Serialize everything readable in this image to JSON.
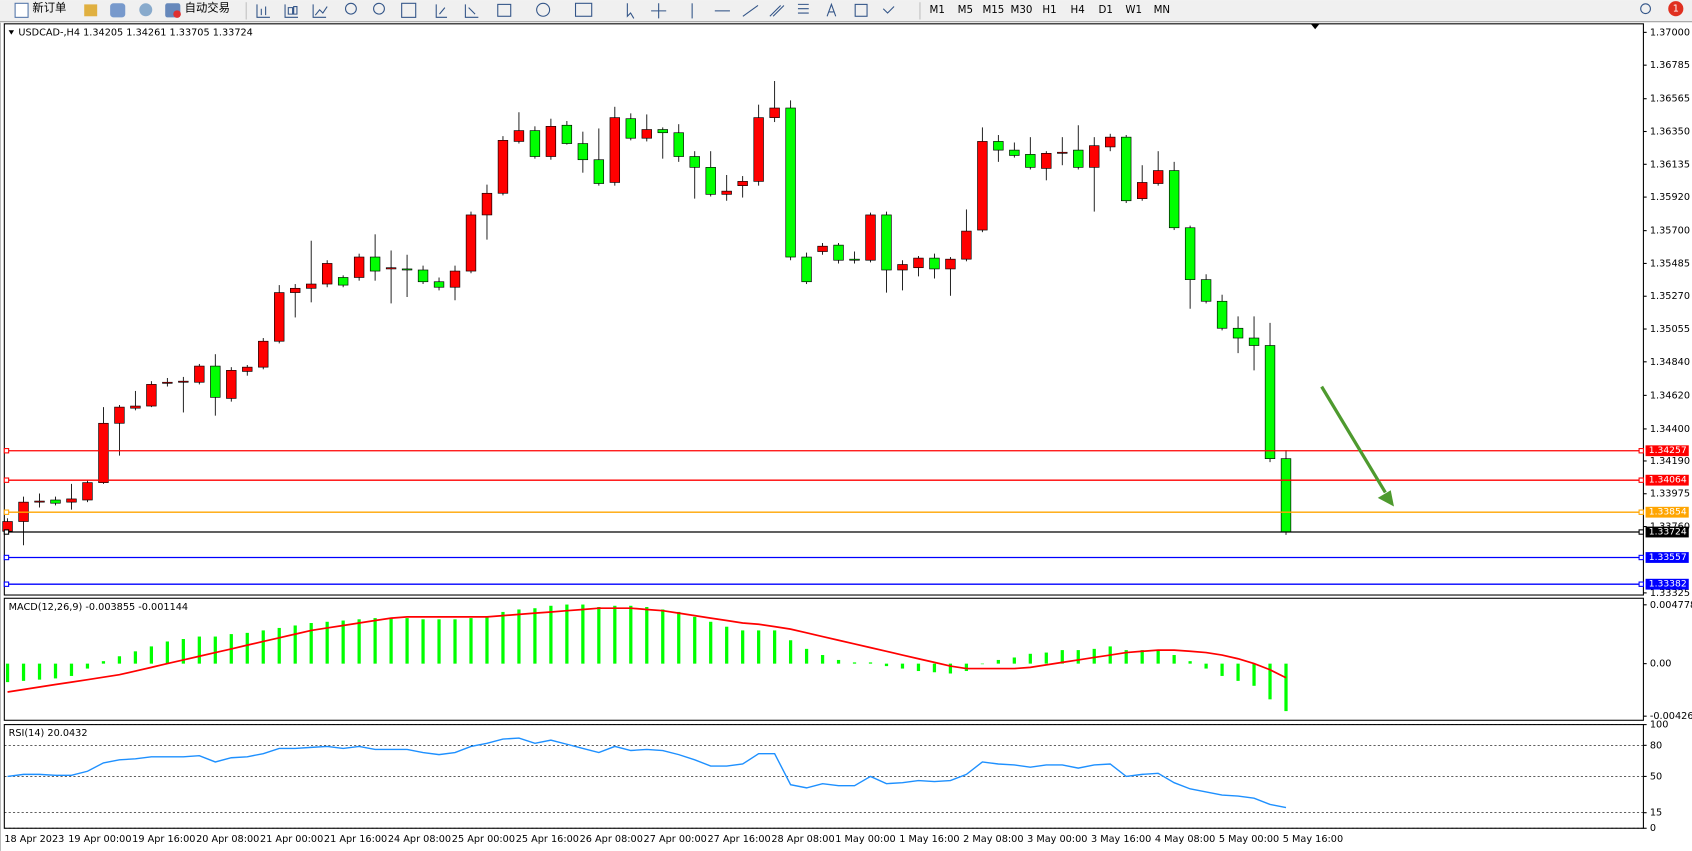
{
  "toolbar": {
    "new_order": "新订单",
    "auto_trading": "自动交易",
    "timeframes": [
      "M1",
      "M5",
      "M15",
      "M30",
      "H1",
      "H4",
      "D1",
      "W1",
      "MN"
    ],
    "alert_badge": "1"
  },
  "chart_data": [
    {
      "type": "candlestick",
      "title": "USDCAD-,H4  1.34205 1.34261 1.33705 1.33724",
      "categories": [
        "18 Apr 2023",
        null,
        null,
        null,
        "19 Apr 00:00",
        null,
        null,
        null,
        "19 Apr 16:00",
        null,
        null,
        null,
        "20 Apr 08:00",
        null,
        null,
        null,
        "21 Apr 00:00",
        null,
        null,
        null,
        "21 Apr 16:00",
        null,
        null,
        null,
        "24 Apr 08:00",
        null,
        null,
        null,
        "25 Apr 00:00",
        null,
        null,
        null,
        "25 Apr 16:00",
        null,
        null,
        null,
        "26 Apr 08:00",
        null,
        null,
        null,
        "27 Apr 00:00",
        null,
        null,
        null,
        "27 Apr 16:00",
        null,
        null,
        null,
        "28 Apr 08:00",
        null,
        null,
        null,
        "1 May 00:00",
        null,
        null,
        null,
        "1 May 16:00",
        null,
        null,
        null,
        "2 May 08:00",
        null,
        null,
        null,
        "3 May 00:00",
        null,
        null,
        null,
        "3 May 16:00",
        null,
        null,
        null,
        "4 May 08:00",
        null,
        null,
        null,
        "5 May 00:00",
        null,
        null,
        null,
        "5 May 16:00"
      ],
      "open": [
        1.33729,
        1.33793,
        1.3392,
        1.33934,
        1.3392,
        1.33934,
        1.34048,
        1.34437,
        1.34536,
        1.3455,
        1.34699,
        1.34706,
        1.34706,
        1.34812,
        1.346,
        1.34777,
        1.34805,
        1.34975,
        1.35294,
        1.35322,
        1.3535,
        1.35393,
        1.35393,
        1.35527,
        1.35449,
        1.35449,
        1.35442,
        1.35365,
        1.35329,
        1.35435,
        1.35803,
        1.35945,
        1.36285,
        1.36356,
        1.36186,
        1.36391,
        1.36271,
        1.36165,
        1.36016,
        1.36434,
        1.36306,
        1.36363,
        1.36342,
        1.36186,
        1.36115,
        1.35938,
        1.35995,
        1.36023,
        1.36441,
        1.36504,
        1.35527,
        1.35563,
        1.35605,
        1.35513,
        1.35506,
        1.35803,
        1.35442,
        1.35457,
        1.3552,
        1.35449,
        1.35513,
        1.35704,
        1.36285,
        1.36228,
        1.362,
        1.36108,
        1.36207,
        1.36228,
        1.36115,
        1.36249,
        1.36313,
        1.3591,
        1.36009,
        1.36094,
        1.35719,
        1.35379,
        1.35237,
        1.3506,
        1.34996,
        1.34947,
        1.34205
      ],
      "high": [
        1.33814,
        1.33956,
        1.33977,
        1.33956,
        1.3404,
        1.34062,
        1.34543,
        1.34557,
        1.34649,
        1.34713,
        1.34734,
        1.34741,
        1.34826,
        1.3489,
        1.34805,
        1.34819,
        1.34996,
        1.35343,
        1.3535,
        1.35634,
        1.35506,
        1.35407,
        1.35549,
        1.35676,
        1.3557,
        1.35542,
        1.35471,
        1.35393,
        1.35471,
        1.35825,
        1.36002,
        1.3632,
        1.36476,
        1.36384,
        1.36434,
        1.36419,
        1.36349,
        1.3637,
        1.36512,
        1.36469,
        1.36462,
        1.36377,
        1.36398,
        1.36221,
        1.36221,
        1.36065,
        1.36058,
        1.36526,
        1.36681,
        1.36554,
        1.35556,
        1.35619,
        1.35619,
        1.35563,
        1.35818,
        1.35825,
        1.35506,
        1.35534,
        1.35549,
        1.35527,
        1.35839,
        1.36377,
        1.36327,
        1.36278,
        1.36313,
        1.36221,
        1.36313,
        1.36391,
        1.36313,
        1.36335,
        1.36327,
        1.36129,
        1.36221,
        1.36151,
        1.35733,
        1.35414,
        1.3528,
        1.35138,
        1.35138,
        1.35095,
        1.34261
      ],
      "low": [
        1.33708,
        1.33637,
        1.33885,
        1.33899,
        1.33871,
        1.3392,
        1.3404,
        1.34225,
        1.34522,
        1.34543,
        1.34678,
        1.34508,
        1.34692,
        1.34487,
        1.34579,
        1.34749,
        1.34791,
        1.34961,
        1.35131,
        1.3523,
        1.35329,
        1.35329,
        1.35372,
        1.35372,
        1.35223,
        1.35265,
        1.3535,
        1.35308,
        1.35244,
        1.35421,
        1.35641,
        1.35931,
        1.36271,
        1.36172,
        1.36165,
        1.36264,
        1.3608,
        1.35995,
        1.35995,
        1.36292,
        1.36285,
        1.36172,
        1.36151,
        1.3591,
        1.35924,
        1.35896,
        1.35917,
        1.35995,
        1.36412,
        1.35506,
        1.3535,
        1.35542,
        1.35485,
        1.35485,
        1.35492,
        1.35294,
        1.35308,
        1.354,
        1.35386,
        1.35273,
        1.35499,
        1.3569,
        1.36151,
        1.36179,
        1.36101,
        1.3603,
        1.36129,
        1.36101,
        1.35825,
        1.36221,
        1.35881,
        1.35896,
        1.35995,
        1.35704,
        1.35188,
        1.35223,
        1.35046,
        1.34897,
        1.34784,
        1.34182,
        1.33705
      ],
      "close": [
        1.33793,
        1.3392,
        1.33927,
        1.33913,
        1.33941,
        1.34048,
        1.34437,
        1.34543,
        1.3455,
        1.34692,
        1.34706,
        1.34713,
        1.34812,
        1.34607,
        1.34784,
        1.34805,
        1.34975,
        1.35294,
        1.35322,
        1.3535,
        1.35485,
        1.35343,
        1.35527,
        1.35435,
        1.35457,
        1.35442,
        1.35365,
        1.35329,
        1.35435,
        1.35803,
        1.35945,
        1.36292,
        1.36356,
        1.36186,
        1.36384,
        1.36271,
        1.36165,
        1.36009,
        1.36441,
        1.36306,
        1.36363,
        1.36342,
        1.36186,
        1.36115,
        1.35938,
        1.35959,
        1.36023,
        1.36441,
        1.36504,
        1.35527,
        1.35365,
        1.35598,
        1.35506,
        1.35506,
        1.35803,
        1.35442,
        1.35478,
        1.3552,
        1.35449,
        1.35513,
        1.35697,
        1.36285,
        1.36228,
        1.36193,
        1.36115,
        1.36207,
        1.36214,
        1.36115,
        1.36257,
        1.36313,
        1.35896,
        1.36016,
        1.36094,
        1.35719,
        1.35379,
        1.35237,
        1.3506,
        1.34996,
        1.34947,
        1.34205,
        1.33724
      ],
      "up_color": "#ff0000",
      "down_color": "#00ff00",
      "ylim": [
        1.33311,
        1.37056
      ],
      "yticks": [
        {
          "value": 1.37,
          "label": "1.37000"
        },
        1.36785,
        1.36565,
        {
          "value": 1.3635,
          "label": "1.36350"
        },
        1.36135,
        {
          "value": 1.3592,
          "label": "1.35920"
        },
        {
          "value": 1.357,
          "label": "1.35700"
        },
        1.35485,
        {
          "value": 1.3527,
          "label": "1.35270"
        },
        1.35055,
        {
          "value": 1.3484,
          "label": "1.34840"
        },
        {
          "value": 1.3462,
          "label": "1.34620"
        },
        {
          "value": 1.344,
          "label": "1.34400"
        },
        {
          "value": 1.3419,
          "label": "1.34190"
        },
        1.33975,
        {
          "value": 1.3376,
          "label": "1.33760"
        },
        1.33325
      ],
      "levels": [
        {
          "value": 1.34257,
          "color": "#ff0000"
        },
        {
          "value": 1.34064,
          "color": "#ff0000"
        },
        {
          "value": 1.33854,
          "color": "#ffa500"
        },
        {
          "value": 1.33724,
          "color": "#000000"
        },
        {
          "value": 1.33557,
          "color": "#0000ff"
        },
        {
          "value": 1.33382,
          "color": "#0000ff"
        }
      ],
      "grid": false
    },
    {
      "type": "bar",
      "title": "MACD(12,26,9) -0.003855 -0.001144",
      "series": [
        {
          "type": "bar",
          "color": "#00ff00",
          "values": [
            -0.0015,
            -0.0014,
            -0.0013,
            -0.0012,
            -0.001,
            -0.0004,
            0.0002,
            0.0006,
            0.001,
            0.0014,
            0.0018,
            0.002,
            0.0022,
            0.0022,
            0.0024,
            0.0025,
            0.0027,
            0.0029,
            0.0031,
            0.0033,
            0.0034,
            0.0035,
            0.0036,
            0.0037,
            0.0037,
            0.0037,
            0.0036,
            0.0036,
            0.0036,
            0.0037,
            0.0038,
            0.0042,
            0.0044,
            0.0045,
            0.0047,
            0.0048,
            0.0048,
            0.0046,
            0.0047,
            0.0047,
            0.0046,
            0.0044,
            0.0042,
            0.0038,
            0.0034,
            0.003,
            0.0027,
            0.0027,
            0.0027,
            0.0019,
            0.0012,
            0.0007,
            0.0003,
            0.0001,
            0.0001,
            -0.0002,
            -0.0004,
            -0.0006,
            -0.0007,
            -0.0008,
            -0.0006,
            0,
            0.0003,
            0.0005,
            0.0008,
            0.0009,
            0.0011,
            0.0011,
            0.0012,
            0.0014,
            0.0011,
            0.0011,
            0.0011,
            0.0007,
            0.0002,
            -0.0004,
            -0.001,
            -0.0014,
            -0.0018,
            -0.0029,
            -0.003855
          ]
        },
        {
          "type": "line",
          "color": "#ff0000",
          "values": [
            -0.0023,
            -0.0021,
            -0.0019,
            -0.0017,
            -0.0015,
            -0.0013,
            -0.0011,
            -0.0009,
            -0.0006,
            -0.0003,
            0,
            0.0003,
            0.0006,
            0.0009,
            0.0012,
            0.0015,
            0.0018,
            0.0021,
            0.0024,
            0.0027,
            0.0029,
            0.0031,
            0.0033,
            0.0035,
            0.0037,
            0.0038,
            0.0038,
            0.0038,
            0.0038,
            0.0038,
            0.0038,
            0.0039,
            0.004,
            0.0041,
            0.0042,
            0.0043,
            0.0044,
            0.0045,
            0.0045,
            0.0045,
            0.0044,
            0.0043,
            0.0041,
            0.0039,
            0.0037,
            0.0035,
            0.0033,
            0.0032,
            0.003,
            0.0028,
            0.0025,
            0.0022,
            0.0019,
            0.0016,
            0.0013,
            0.001,
            0.0007,
            0.0004,
            0.0001,
            -0.0002,
            -0.0004,
            -0.0004,
            -0.0004,
            -0.0004,
            -0.0003,
            -0.0001,
            0.0001,
            0.0003,
            0.0005,
            0.0007,
            0.0009,
            0.001,
            0.0011,
            0.0011,
            0.001,
            0.0009,
            0.0007,
            0.0004,
            0,
            -0.0005,
            -0.001144
          ]
        }
      ],
      "ylim": [
        -0.0046,
        0.00531
      ],
      "yticks": [
        0.004778,
        {
          "value": 0,
          "label": "0.00"
        },
        -0.004266
      ],
      "grid": false
    },
    {
      "type": "line",
      "title": "RSI(14) 20.0432",
      "color": "#1e90ff",
      "values": [
        50,
        52,
        52,
        51,
        51,
        55,
        63,
        66,
        67,
        69,
        69,
        69,
        70,
        64,
        68,
        69,
        72,
        77,
        77,
        78,
        79,
        77,
        79,
        76,
        76,
        76,
        73,
        71,
        73,
        79,
        82,
        86,
        87,
        82,
        85,
        81,
        77,
        73,
        79,
        75,
        76,
        75,
        71,
        66,
        60,
        60,
        62,
        72,
        72,
        42,
        39,
        43,
        41,
        41,
        50,
        43,
        44,
        46,
        45,
        46,
        52,
        64,
        62,
        61,
        59,
        61,
        61,
        58,
        61,
        62,
        50,
        52,
        53,
        44,
        38,
        35,
        32,
        31,
        29,
        23,
        20.0432
      ],
      "ylim": [
        0,
        100
      ],
      "yticks": [
        100,
        80,
        50,
        15,
        0
      ],
      "grid": true
    }
  ]
}
